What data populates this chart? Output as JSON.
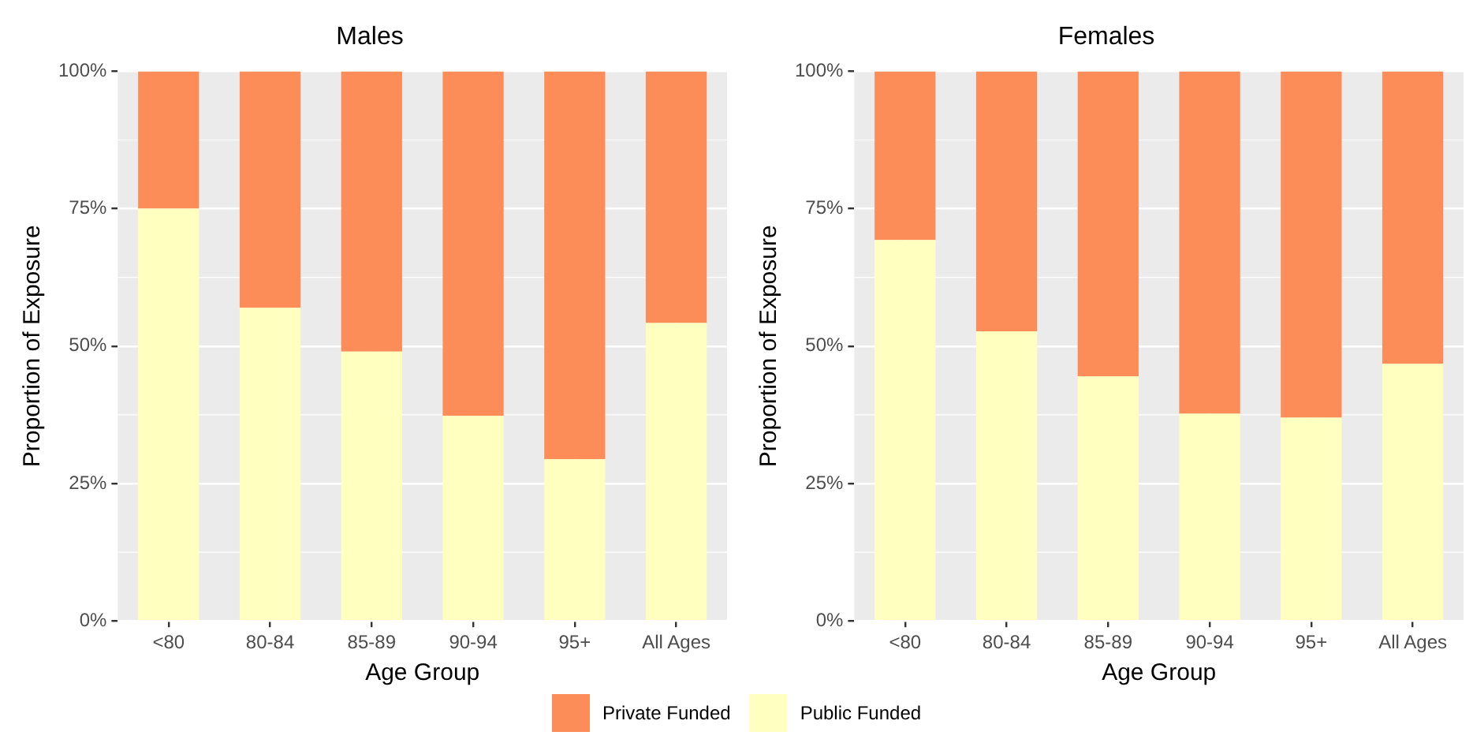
{
  "chart_data": [
    {
      "type": "bar",
      "title": "Males",
      "xlabel": "Age Group",
      "ylabel": "Proportion of Exposure",
      "categories": [
        "<80",
        "80-84",
        "85-89",
        "90-94",
        "95+",
        "All Ages"
      ],
      "stacked": true,
      "series": [
        {
          "name": "Public Funded",
          "color": "#ffffbf",
          "values": [
            75,
            57,
            49,
            37.3,
            29.4,
            54.2
          ]
        },
        {
          "name": "Private Funded",
          "color": "#fc8d59",
          "values": [
            25,
            43,
            51,
            62.7,
            70.6,
            45.8
          ]
        }
      ],
      "ylim": [
        0,
        100
      ],
      "yticks": [
        {
          "value": 0,
          "label": "0%"
        },
        {
          "value": 25,
          "label": "25%"
        },
        {
          "value": 50,
          "label": "50%"
        },
        {
          "value": 75,
          "label": "75%"
        },
        {
          "value": 100,
          "label": "100%"
        }
      ],
      "grid": true,
      "legend": "bottom"
    },
    {
      "type": "bar",
      "title": "Females",
      "xlabel": "Age Group",
      "ylabel": "Proportion of Exposure",
      "categories": [
        "<80",
        "80-84",
        "85-89",
        "90-94",
        "95+",
        "All Ages"
      ],
      "stacked": true,
      "series": [
        {
          "name": "Public Funded",
          "color": "#ffffbf",
          "values": [
            69.3,
            52.7,
            44.5,
            37.7,
            37,
            46.8
          ]
        },
        {
          "name": "Private Funded",
          "color": "#fc8d59",
          "values": [
            30.7,
            47.3,
            55.5,
            62.3,
            63,
            53.2
          ]
        }
      ],
      "ylim": [
        0,
        100
      ],
      "yticks": [
        {
          "value": 0,
          "label": "0%"
        },
        {
          "value": 25,
          "label": "25%"
        },
        {
          "value": 50,
          "label": "50%"
        },
        {
          "value": 75,
          "label": "75%"
        },
        {
          "value": 100,
          "label": "100%"
        }
      ],
      "grid": true,
      "legend": "bottom"
    }
  ]
}
